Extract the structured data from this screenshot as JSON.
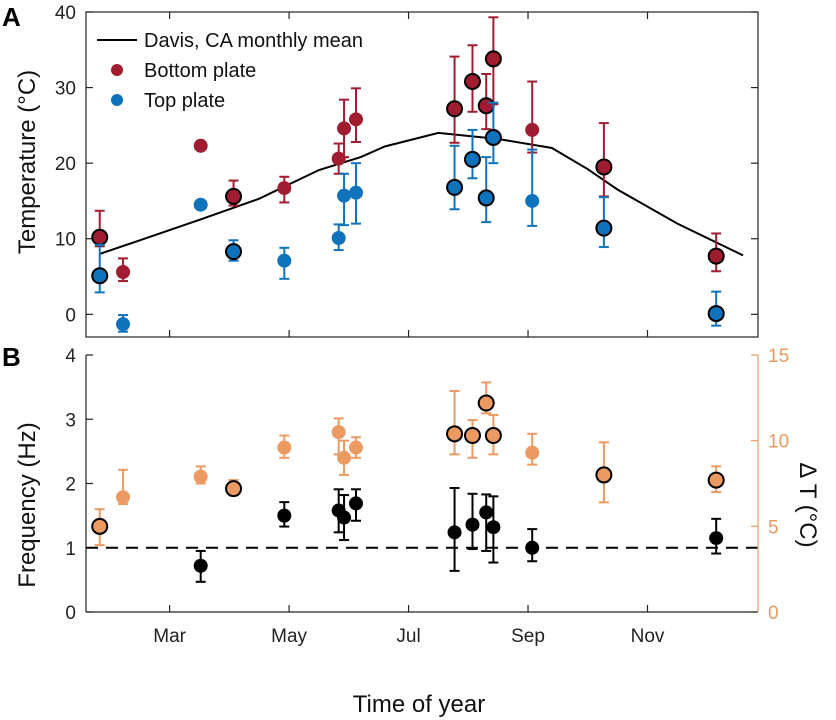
{
  "colors": {
    "bottom": "#a01c30",
    "top": "#0f73bc",
    "freq": "#000000",
    "dt": "#eb9a61",
    "mean": "#000000",
    "axis": "#222222"
  },
  "x_ticks": [
    {
      "label": "Mar",
      "month": 3
    },
    {
      "label": "May",
      "month": 5
    },
    {
      "label": "Jul",
      "month": 7
    },
    {
      "label": "Sep",
      "month": 9
    },
    {
      "label": "Nov",
      "month": 11
    }
  ],
  "xlabel": "Time of year",
  "chart_data": [
    {
      "type": "scatter",
      "panel_label": "A",
      "ylabel": "Temperature (°C)",
      "xlim": [
        1.6,
        12.85
      ],
      "ylim": [
        -3,
        40
      ],
      "y_ticks": [
        "0",
        "10",
        "20",
        "30",
        "40"
      ],
      "y_tick_values": [
        0,
        10,
        20,
        30,
        40
      ],
      "legend": {
        "position": "top-left",
        "entries": [
          "Davis, CA monthly mean",
          "Bottom plate",
          "Top plate"
        ]
      },
      "mean_line": {
        "name": "Davis, CA monthly mean",
        "x": [
          1.83,
          2.5,
          3.5,
          4.5,
          5.5,
          6.2,
          6.6,
          7.5,
          8.5,
          9.4,
          10.0,
          10.5,
          11.5,
          12.6
        ],
        "y": [
          8,
          9.8,
          12.5,
          15.3,
          19.1,
          20.8,
          22.2,
          24,
          23.2,
          22,
          19.2,
          16.5,
          12,
          7.8
        ]
      },
      "series": [
        {
          "name": "Bottom plate",
          "color": "#a01c30",
          "points": [
            {
              "x": 1.83,
              "y": 10.2,
              "lo": 9.0,
              "hi": 13.7,
              "outlined": true
            },
            {
              "x": 2.22,
              "y": 5.6,
              "lo": 4.4,
              "hi": 7.4,
              "outlined": false
            },
            {
              "x": 3.52,
              "y": 22.3,
              "lo": 22.3,
              "hi": 22.3,
              "outlined": false
            },
            {
              "x": 4.07,
              "y": 15.6,
              "lo": 14.4,
              "hi": 17.7,
              "outlined": true
            },
            {
              "x": 4.92,
              "y": 16.7,
              "lo": 14.8,
              "hi": 18.2,
              "outlined": false
            },
            {
              "x": 5.83,
              "y": 20.6,
              "lo": 18.6,
              "hi": 22.6,
              "outlined": false
            },
            {
              "x": 5.92,
              "y": 24.6,
              "lo": 20.8,
              "hi": 28.4,
              "outlined": false
            },
            {
              "x": 6.12,
              "y": 25.8,
              "lo": 22.8,
              "hi": 29.9,
              "outlined": false
            },
            {
              "x": 7.77,
              "y": 27.2,
              "lo": 22.7,
              "hi": 34.1,
              "outlined": true
            },
            {
              "x": 8.07,
              "y": 30.8,
              "lo": 26.8,
              "hi": 35.6,
              "outlined": true
            },
            {
              "x": 8.3,
              "y": 27.6,
              "lo": 24.5,
              "hi": 31.8,
              "outlined": true
            },
            {
              "x": 8.42,
              "y": 33.8,
              "lo": 27.8,
              "hi": 39.3,
              "outlined": true
            },
            {
              "x": 9.07,
              "y": 24.4,
              "lo": 21.4,
              "hi": 30.8,
              "outlined": false
            },
            {
              "x": 10.27,
              "y": 19.5,
              "lo": 15.6,
              "hi": 25.3,
              "outlined": true
            },
            {
              "x": 12.15,
              "y": 7.7,
              "lo": 5.7,
              "hi": 10.7,
              "outlined": true
            }
          ]
        },
        {
          "name": "Top plate",
          "color": "#0f73bc",
          "points": [
            {
              "x": 1.83,
              "y": 5.1,
              "lo": 2.9,
              "hi": 9.2,
              "outlined": true
            },
            {
              "x": 2.22,
              "y": -1.3,
              "lo": -2.3,
              "hi": -0.1,
              "outlined": false
            },
            {
              "x": 3.52,
              "y": 14.5,
              "lo": 14.5,
              "hi": 14.5,
              "outlined": false
            },
            {
              "x": 4.07,
              "y": 8.3,
              "lo": 7.1,
              "hi": 9.8,
              "outlined": true
            },
            {
              "x": 4.92,
              "y": 7.1,
              "lo": 4.7,
              "hi": 8.8,
              "outlined": false
            },
            {
              "x": 5.83,
              "y": 10.1,
              "lo": 8.5,
              "hi": 11.9,
              "outlined": false
            },
            {
              "x": 5.92,
              "y": 15.7,
              "lo": 11.8,
              "hi": 18.6,
              "outlined": false
            },
            {
              "x": 6.12,
              "y": 16.1,
              "lo": 12.0,
              "hi": 20.0,
              "outlined": false
            },
            {
              "x": 7.77,
              "y": 16.8,
              "lo": 13.9,
              "hi": 22.3,
              "outlined": true
            },
            {
              "x": 8.07,
              "y": 20.5,
              "lo": 18.0,
              "hi": 24.4,
              "outlined": true
            },
            {
              "x": 8.3,
              "y": 15.4,
              "lo": 12.2,
              "hi": 20.8,
              "outlined": true
            },
            {
              "x": 8.42,
              "y": 23.4,
              "lo": 20.0,
              "hi": 28.0,
              "outlined": true
            },
            {
              "x": 9.07,
              "y": 15.0,
              "lo": 11.7,
              "hi": 21.8,
              "outlined": false
            },
            {
              "x": 10.27,
              "y": 11.4,
              "lo": 8.9,
              "hi": 15.5,
              "outlined": true
            },
            {
              "x": 12.15,
              "y": 0.1,
              "lo": -1.5,
              "hi": 3.0,
              "outlined": true
            }
          ]
        }
      ]
    },
    {
      "type": "scatter",
      "panel_label": "B",
      "ylabel": "Frequency (Hz)",
      "ylim": [
        0,
        4
      ],
      "y_ticks": [
        "0",
        "1",
        "2",
        "3",
        "4"
      ],
      "y_tick_values": [
        0,
        1,
        2,
        3,
        4
      ],
      "y2label": "Δ T (°C)",
      "y2lim": [
        0,
        15
      ],
      "y2_ticks": [
        "0",
        "5",
        "10",
        "15"
      ],
      "y2_tick_values": [
        0,
        5,
        10,
        15
      ],
      "reference_line": {
        "y": 1,
        "style": "dashed"
      },
      "series": [
        {
          "name": "",
          "color": "#000000",
          "axis": "left",
          "points": [
            {
              "x": 3.52,
              "y": 0.72,
              "lo": 0.47,
              "hi": 0.95,
              "outlined": false
            },
            {
              "x": 4.92,
              "y": 1.5,
              "lo": 1.33,
              "hi": 1.71,
              "outlined": false
            },
            {
              "x": 5.83,
              "y": 1.58,
              "lo": 1.24,
              "hi": 1.91,
              "outlined": false
            },
            {
              "x": 5.92,
              "y": 1.47,
              "lo": 1.12,
              "hi": 1.82,
              "outlined": false
            },
            {
              "x": 6.12,
              "y": 1.69,
              "lo": 1.42,
              "hi": 1.91,
              "outlined": false
            },
            {
              "x": 7.77,
              "y": 1.24,
              "lo": 0.64,
              "hi": 1.93,
              "outlined": false
            },
            {
              "x": 8.07,
              "y": 1.36,
              "lo": 0.98,
              "hi": 1.84,
              "outlined": false
            },
            {
              "x": 8.3,
              "y": 1.55,
              "lo": 0.95,
              "hi": 1.83,
              "outlined": false
            },
            {
              "x": 8.42,
              "y": 1.32,
              "lo": 0.77,
              "hi": 1.8,
              "outlined": false
            },
            {
              "x": 9.07,
              "y": 1.0,
              "lo": 0.79,
              "hi": 1.29,
              "outlined": false
            },
            {
              "x": 12.15,
              "y": 1.15,
              "lo": 0.91,
              "hi": 1.45,
              "outlined": false
            }
          ]
        },
        {
          "name": "",
          "color": "#eb9a61",
          "axis": "right",
          "points": [
            {
              "x": 1.83,
              "y": 5.0,
              "lo": 3.9,
              "hi": 6.0,
              "outlined": true
            },
            {
              "x": 2.22,
              "y": 6.7,
              "lo": 6.3,
              "hi": 8.3,
              "outlined": false
            },
            {
              "x": 3.52,
              "y": 7.9,
              "lo": 7.5,
              "hi": 8.5,
              "outlined": false
            },
            {
              "x": 4.07,
              "y": 7.2,
              "lo": 6.8,
              "hi": 7.7,
              "outlined": true
            },
            {
              "x": 4.92,
              "y": 9.6,
              "lo": 9.0,
              "hi": 10.3,
              "outlined": false
            },
            {
              "x": 5.83,
              "y": 10.5,
              "lo": 9.2,
              "hi": 11.3,
              "outlined": false
            },
            {
              "x": 5.92,
              "y": 9.0,
              "lo": 8.0,
              "hi": 10.0,
              "outlined": false
            },
            {
              "x": 6.12,
              "y": 9.6,
              "lo": 9.0,
              "hi": 10.2,
              "outlined": false
            },
            {
              "x": 7.77,
              "y": 10.4,
              "lo": 9.2,
              "hi": 12.9,
              "outlined": true
            },
            {
              "x": 8.07,
              "y": 10.3,
              "lo": 9.0,
              "hi": 11.2,
              "outlined": true
            },
            {
              "x": 8.3,
              "y": 12.2,
              "lo": 11.6,
              "hi": 13.4,
              "outlined": true
            },
            {
              "x": 8.42,
              "y": 10.3,
              "lo": 9.2,
              "hi": 11.5,
              "outlined": true
            },
            {
              "x": 9.07,
              "y": 9.3,
              "lo": 8.6,
              "hi": 10.4,
              "outlined": false
            },
            {
              "x": 10.27,
              "y": 8.0,
              "lo": 6.4,
              "hi": 9.9,
              "outlined": true
            },
            {
              "x": 12.15,
              "y": 7.7,
              "lo": 7.0,
              "hi": 8.5,
              "outlined": true
            }
          ]
        }
      ]
    }
  ]
}
